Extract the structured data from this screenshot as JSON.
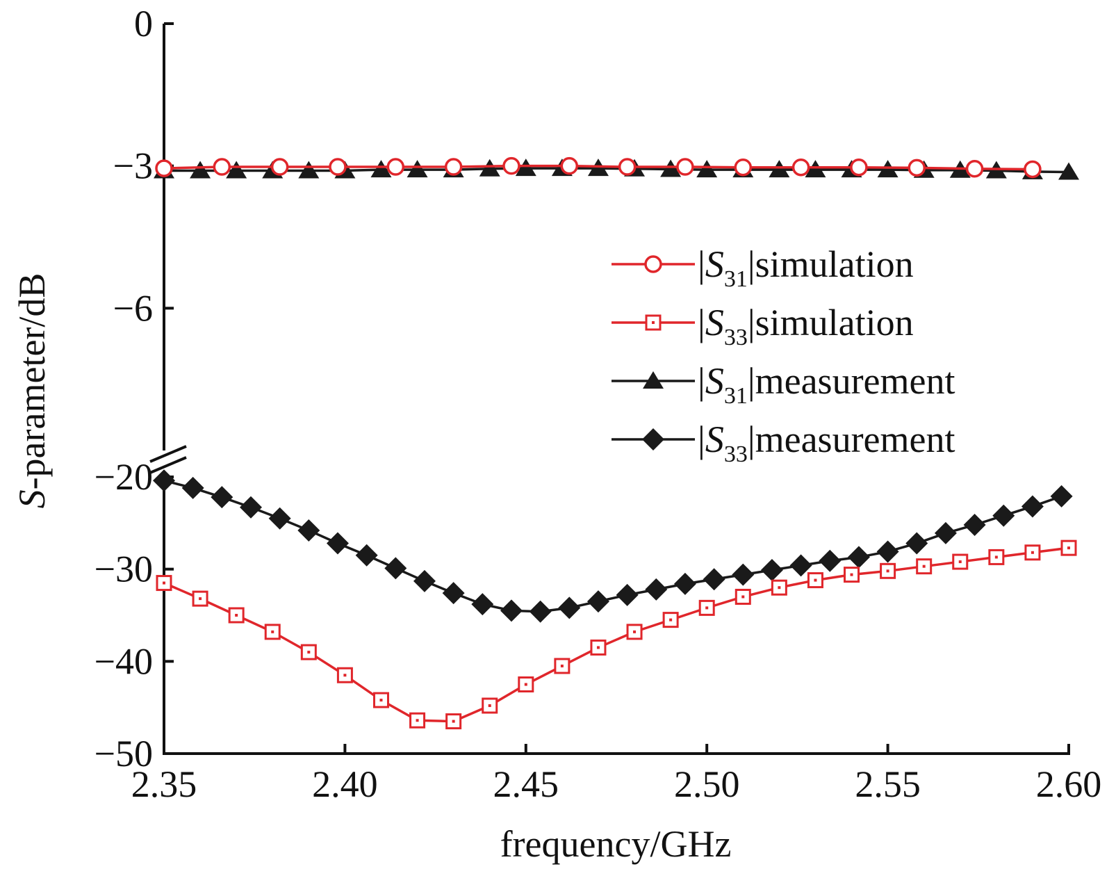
{
  "chart_data": {
    "type": "line",
    "xlabel": "frequency/GHz",
    "ylabel": {
      "italic": "S",
      "rest": "-parameter/dB"
    },
    "xlim": [
      2.35,
      2.6
    ],
    "x_ticks": [
      "2.35",
      "2.40",
      "2.45",
      "2.50",
      "2.55",
      "2.60"
    ],
    "y_axis_break": true,
    "y_upper_range": [
      -9,
      0
    ],
    "y_lower_range": [
      -50,
      -20
    ],
    "y_ticks_upper": [
      "0",
      "−3",
      "−6"
    ],
    "y_ticks_lower": [
      "−20",
      "−30",
      "−40",
      "−50"
    ],
    "legend_position": "right",
    "series": [
      {
        "label_pre": "|S",
        "label_sub": "31",
        "label_post": "|simulation",
        "color": "#e0262b",
        "marker": "circle-open",
        "x": [
          2.35,
          2.366,
          2.382,
          2.398,
          2.414,
          2.43,
          2.446,
          2.462,
          2.478,
          2.494,
          2.51,
          2.526,
          2.542,
          2.558,
          2.574,
          2.59
        ],
        "y": [
          -3.05,
          -3.02,
          -3.02,
          -3.02,
          -3.02,
          -3.02,
          -3.0,
          -3.0,
          -3.02,
          -3.02,
          -3.03,
          -3.03,
          -3.03,
          -3.04,
          -3.06,
          -3.07
        ]
      },
      {
        "label_pre": "|S",
        "label_sub": "33",
        "label_post": "|simulation",
        "color": "#e0262b",
        "marker": "square-open",
        "x": [
          2.35,
          2.36,
          2.37,
          2.38,
          2.39,
          2.4,
          2.41,
          2.42,
          2.43,
          2.44,
          2.45,
          2.46,
          2.47,
          2.48,
          2.49,
          2.5,
          2.51,
          2.52,
          2.53,
          2.54,
          2.55,
          2.56,
          2.57,
          2.58,
          2.59,
          2.6
        ],
        "y": [
          -31.5,
          -33.2,
          -35.0,
          -36.8,
          -39.0,
          -41.5,
          -44.2,
          -46.4,
          -46.5,
          -44.8,
          -42.5,
          -40.5,
          -38.5,
          -36.8,
          -35.5,
          -34.2,
          -33.0,
          -32.0,
          -31.2,
          -30.6,
          -30.2,
          -29.7,
          -29.2,
          -28.7,
          -28.2,
          -27.7
        ]
      },
      {
        "label_pre": "|S",
        "label_sub": "31",
        "label_post": "|measurement",
        "color": "#1a1a1a",
        "marker": "triangle-filled",
        "x": [
          2.35,
          2.36,
          2.37,
          2.38,
          2.39,
          2.4,
          2.41,
          2.42,
          2.43,
          2.44,
          2.45,
          2.46,
          2.47,
          2.48,
          2.49,
          2.5,
          2.51,
          2.52,
          2.53,
          2.54,
          2.55,
          2.56,
          2.57,
          2.58,
          2.59,
          2.6
        ],
        "y": [
          -3.1,
          -3.1,
          -3.1,
          -3.1,
          -3.1,
          -3.1,
          -3.08,
          -3.08,
          -3.08,
          -3.06,
          -3.05,
          -3.05,
          -3.05,
          -3.06,
          -3.07,
          -3.08,
          -3.08,
          -3.08,
          -3.08,
          -3.08,
          -3.08,
          -3.09,
          -3.09,
          -3.1,
          -3.12,
          -3.13
        ]
      },
      {
        "label_pre": "|S",
        "label_sub": "33",
        "label_post": "|measurement",
        "color": "#1a1a1a",
        "marker": "diamond-filled",
        "x": [
          2.35,
          2.358,
          2.366,
          2.374,
          2.382,
          2.39,
          2.398,
          2.406,
          2.414,
          2.422,
          2.43,
          2.438,
          2.446,
          2.454,
          2.462,
          2.47,
          2.478,
          2.486,
          2.494,
          2.502,
          2.51,
          2.518,
          2.526,
          2.534,
          2.542,
          2.55,
          2.558,
          2.566,
          2.574,
          2.582,
          2.59,
          2.598
        ],
        "y": [
          -20.4,
          -21.2,
          -22.2,
          -23.3,
          -24.5,
          -25.8,
          -27.2,
          -28.5,
          -29.9,
          -31.3,
          -32.6,
          -33.8,
          -34.5,
          -34.6,
          -34.2,
          -33.5,
          -32.8,
          -32.2,
          -31.6,
          -31.1,
          -30.6,
          -30.1,
          -29.6,
          -29.1,
          -28.7,
          -28.1,
          -27.2,
          -26.1,
          -25.2,
          -24.2,
          -23.2,
          -22.1
        ]
      }
    ]
  }
}
